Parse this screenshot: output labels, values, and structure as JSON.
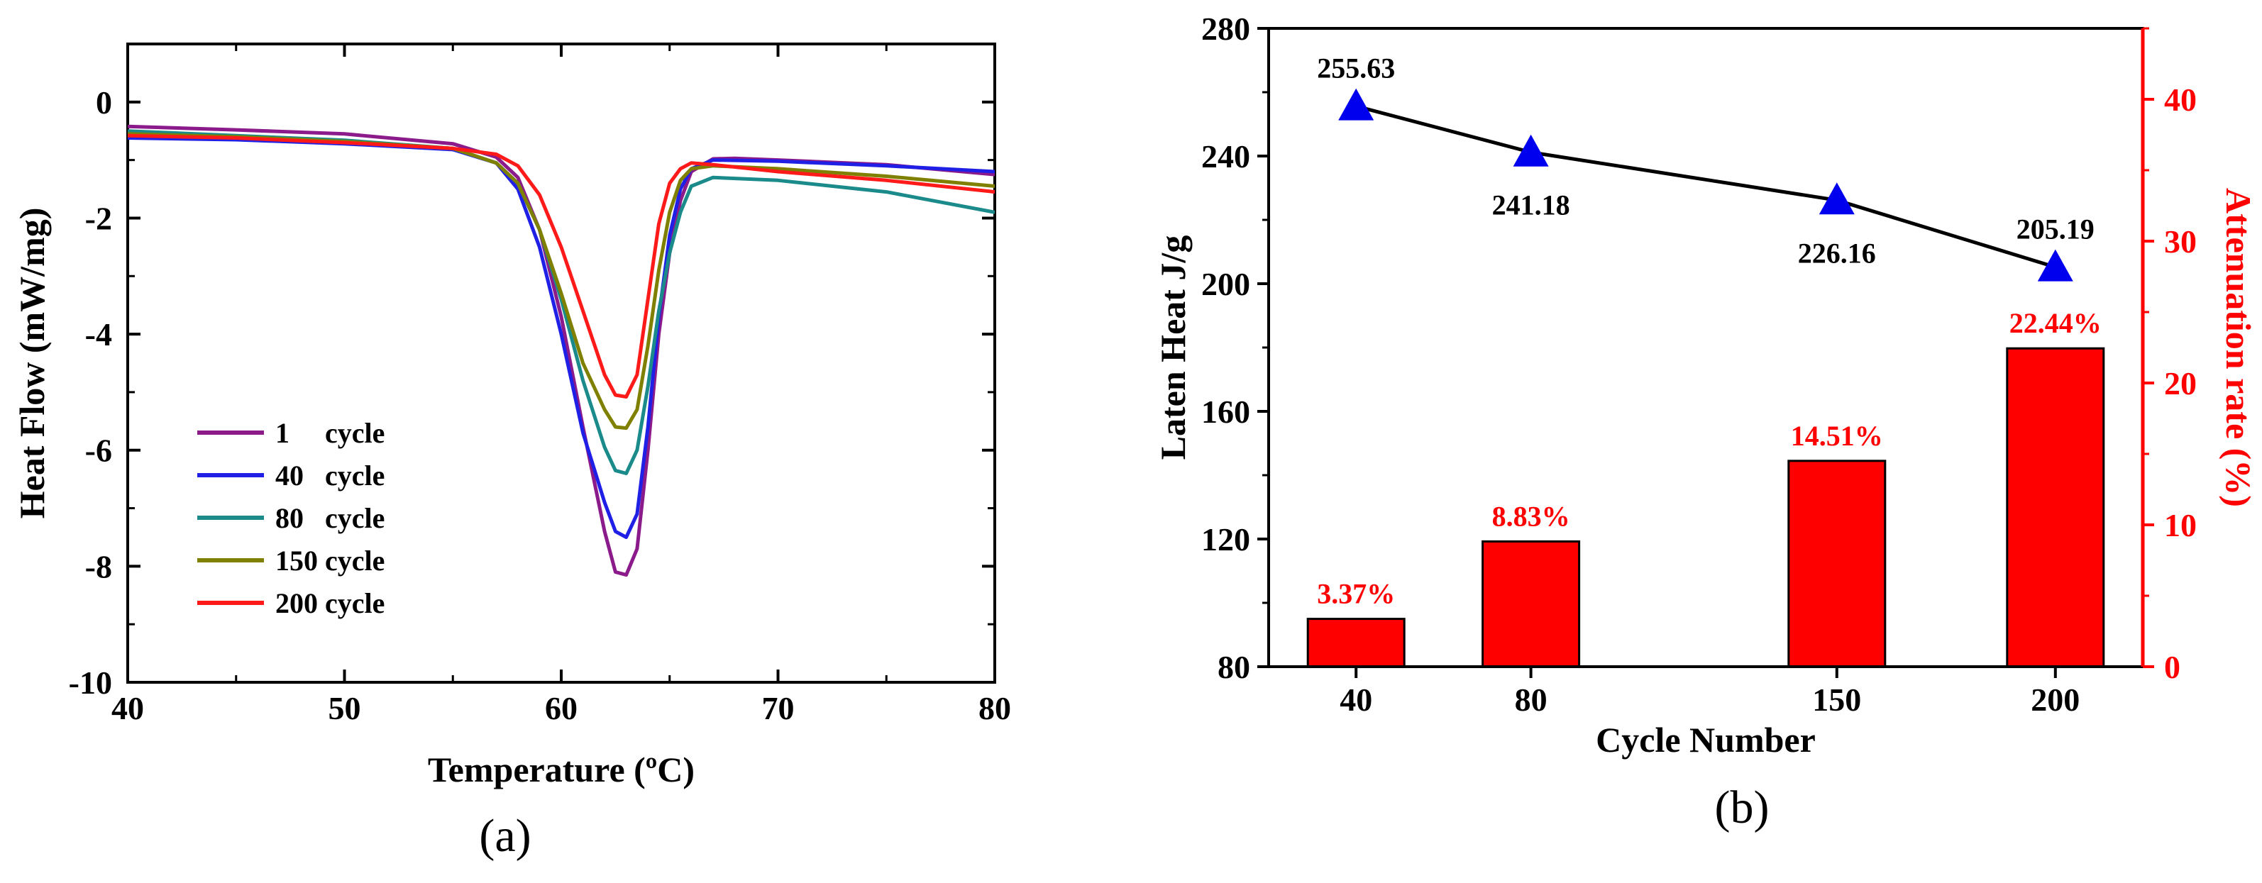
{
  "chart_data": [
    {
      "panel": "(a)",
      "type": "line",
      "xlabel": "Temperature (ºC)",
      "ylabel": "Heat Flow (mW/mg)",
      "xlim": [
        40,
        80
      ],
      "ylim": [
        -10,
        1
      ],
      "xticks": [
        40,
        50,
        60,
        70,
        80
      ],
      "yticks": [
        -10,
        -8,
        -6,
        -4,
        -2,
        0
      ],
      "legend_position": "lower-left",
      "series": [
        {
          "name": "1     cycle",
          "color": "#8b1a8b",
          "points": [
            [
              40,
              -0.42
            ],
            [
              45,
              -0.48
            ],
            [
              50,
              -0.55
            ],
            [
              55,
              -0.72
            ],
            [
              57,
              -0.95
            ],
            [
              58,
              -1.3
            ],
            [
              59,
              -2.2
            ],
            [
              60,
              -3.7
            ],
            [
              61,
              -5.6
            ],
            [
              62,
              -7.4
            ],
            [
              62.5,
              -8.1
            ],
            [
              63,
              -8.15
            ],
            [
              63.5,
              -7.7
            ],
            [
              64,
              -6.0
            ],
            [
              64.5,
              -4.0
            ],
            [
              65,
              -2.6
            ],
            [
              65.5,
              -1.7
            ],
            [
              66,
              -1.2
            ],
            [
              67,
              -0.98
            ],
            [
              68,
              -0.97
            ],
            [
              70,
              -1.0
            ],
            [
              75,
              -1.08
            ],
            [
              80,
              -1.25
            ]
          ]
        },
        {
          "name": "40   cycle",
          "color": "#1f1fe6",
          "points": [
            [
              40,
              -0.62
            ],
            [
              45,
              -0.65
            ],
            [
              50,
              -0.72
            ],
            [
              55,
              -0.82
            ],
            [
              57,
              -1.05
            ],
            [
              58,
              -1.5
            ],
            [
              59,
              -2.5
            ],
            [
              60,
              -4.0
            ],
            [
              61,
              -5.7
            ],
            [
              62,
              -6.9
            ],
            [
              62.5,
              -7.4
            ],
            [
              63,
              -7.5
            ],
            [
              63.5,
              -7.1
            ],
            [
              64,
              -5.6
            ],
            [
              64.5,
              -3.7
            ],
            [
              65,
              -2.3
            ],
            [
              65.5,
              -1.5
            ],
            [
              66,
              -1.15
            ],
            [
              67,
              -1.0
            ],
            [
              70,
              -1.02
            ],
            [
              75,
              -1.1
            ],
            [
              80,
              -1.2
            ]
          ]
        },
        {
          "name": "80   cycle",
          "color": "#1a8a8a",
          "points": [
            [
              40,
              -0.5
            ],
            [
              45,
              -0.58
            ],
            [
              50,
              -0.66
            ],
            [
              55,
              -0.8
            ],
            [
              57,
              -1.05
            ],
            [
              58,
              -1.4
            ],
            [
              59,
              -2.2
            ],
            [
              60,
              -3.4
            ],
            [
              61,
              -4.8
            ],
            [
              62,
              -5.95
            ],
            [
              62.5,
              -6.35
            ],
            [
              63,
              -6.4
            ],
            [
              63.5,
              -6.0
            ],
            [
              64,
              -4.9
            ],
            [
              64.5,
              -3.6
            ],
            [
              65,
              -2.6
            ],
            [
              65.5,
              -1.9
            ],
            [
              66,
              -1.45
            ],
            [
              67,
              -1.3
            ],
            [
              70,
              -1.35
            ],
            [
              75,
              -1.55
            ],
            [
              80,
              -1.9
            ]
          ]
        },
        {
          "name": "150 cycle",
          "color": "#808000",
          "points": [
            [
              40,
              -0.55
            ],
            [
              45,
              -0.6
            ],
            [
              50,
              -0.68
            ],
            [
              55,
              -0.8
            ],
            [
              57,
              -1.05
            ],
            [
              58,
              -1.4
            ],
            [
              59,
              -2.2
            ],
            [
              60,
              -3.3
            ],
            [
              61,
              -4.5
            ],
            [
              62,
              -5.3
            ],
            [
              62.5,
              -5.6
            ],
            [
              63,
              -5.62
            ],
            [
              63.5,
              -5.3
            ],
            [
              64,
              -4.2
            ],
            [
              64.5,
              -2.9
            ],
            [
              65,
              -1.9
            ],
            [
              65.5,
              -1.35
            ],
            [
              66,
              -1.15
            ],
            [
              67,
              -1.1
            ],
            [
              70,
              -1.15
            ],
            [
              75,
              -1.28
            ],
            [
              80,
              -1.45
            ]
          ]
        },
        {
          "name": "200 cycle",
          "color": "#ff1a1a",
          "points": [
            [
              40,
              -0.58
            ],
            [
              45,
              -0.62
            ],
            [
              50,
              -0.7
            ],
            [
              55,
              -0.8
            ],
            [
              57,
              -0.9
            ],
            [
              58,
              -1.1
            ],
            [
              59,
              -1.6
            ],
            [
              60,
              -2.5
            ],
            [
              61,
              -3.6
            ],
            [
              62,
              -4.7
            ],
            [
              62.5,
              -5.05
            ],
            [
              63,
              -5.08
            ],
            [
              63.5,
              -4.7
            ],
            [
              64,
              -3.4
            ],
            [
              64.5,
              -2.1
            ],
            [
              65,
              -1.4
            ],
            [
              65.5,
              -1.15
            ],
            [
              66,
              -1.05
            ],
            [
              67,
              -1.08
            ],
            [
              70,
              -1.2
            ],
            [
              75,
              -1.35
            ],
            [
              80,
              -1.55
            ]
          ]
        }
      ]
    },
    {
      "panel": "(b)",
      "type": "bar+line",
      "xlabel": "Cycle Number",
      "ylabel": "Laten Heat J/g",
      "y2label": "Attenuation rate (%)",
      "categories": [
        "40",
        "80",
        "150",
        "200"
      ],
      "x_positions": [
        40,
        80,
        150,
        200
      ],
      "xlim": [
        20,
        220
      ],
      "ylim": [
        80,
        280
      ],
      "yticks": [
        80,
        120,
        160,
        200,
        240,
        280
      ],
      "y2lim": [
        0,
        45
      ],
      "y2ticks": [
        0,
        10,
        20,
        30,
        40
      ],
      "bar_color": "#ff0000",
      "line_color": "#000000",
      "marker_color": "#0000ee",
      "axis2_color": "#ff0000",
      "line_series": {
        "name": "Laten Heat",
        "values": [
          255.63,
          241.18,
          226.16,
          205.19
        ],
        "labels": [
          "255.63",
          "241.18",
          "226.16",
          "205.19"
        ]
      },
      "bar_series": {
        "name": "Attenuation rate",
        "values": [
          3.37,
          8.83,
          14.51,
          22.44
        ],
        "labels": [
          "3.37%",
          "8.83%",
          "14.51%",
          "22.44%"
        ]
      }
    }
  ]
}
